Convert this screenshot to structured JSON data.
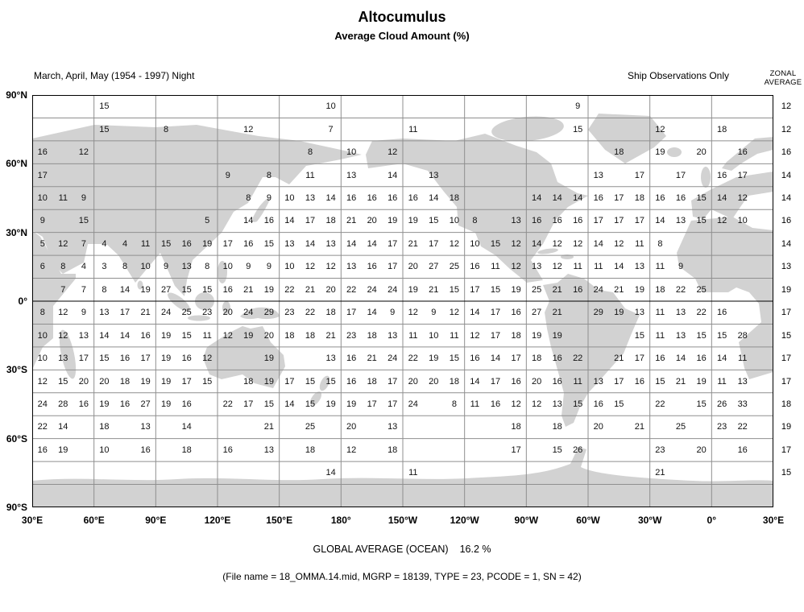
{
  "header": {
    "title": "Altocumulus",
    "subtitle": "Average Cloud Amount (%)",
    "period": "March, April, May (1954 - 1997) Night",
    "source": "Ship Observations Only",
    "zonal_label_line1": "ZONAL",
    "zonal_label_line2": "AVERAGE"
  },
  "footer": {
    "global_average_label": "GLOBAL AVERAGE (OCEAN)",
    "global_average_value": "16.2 %",
    "file_info": "(File name = 18_OMMA.14.mid, MGRP = 18139, TYPE = 23, PCODE = 1, SN = 42)"
  },
  "chart_data": {
    "type": "heatmap",
    "title": "Altocumulus",
    "subtitle": "Average Cloud Amount (%)",
    "season": "March, April, May (1954 - 1997) Night",
    "source": "Ship Observations Only",
    "global_average_ocean_pct": 16.2,
    "lat_labels": [
      "90°N",
      "60°N",
      "30°N",
      "0°",
      "30°S",
      "60°S",
      "90°S"
    ],
    "lon_labels": [
      "30°E",
      "60°E",
      "90°E",
      "120°E",
      "150°E",
      "180°",
      "150°W",
      "120°W",
      "90°W",
      "60°W",
      "30°W",
      "0°",
      "30°E"
    ],
    "n_rows": 18,
    "n_cols": 36,
    "cell_size_degrees": 10,
    "colors": {
      "land": "#d2d2d2",
      "grid": "#8f8f8f",
      "border": "#000000"
    },
    "zonal_averages": [
      12,
      12,
      16,
      14,
      14,
      16,
      14,
      13,
      19,
      17,
      15,
      17,
      17,
      18,
      19,
      17,
      15
    ],
    "rows": [
      {
        "lat_band": "90N-80N",
        "cells": {
          "3": 15,
          "14": 10,
          "26": 9
        }
      },
      {
        "lat_band": "80N-70N",
        "cells": {
          "3": 15,
          "6": 8,
          "10": 12,
          "14": 7,
          "18": 11,
          "26": 15,
          "30": 12,
          "33": 18
        }
      },
      {
        "lat_band": "70N-60N",
        "cells": {
          "0": 16,
          "2": 12,
          "13": 8,
          "15": 10,
          "17": 12,
          "28": 18,
          "30": 19,
          "32": 20,
          "34": 16
        }
      },
      {
        "lat_band": "60N-50N",
        "cells": {
          "0": 17,
          "9": 9,
          "11": 8,
          "13": 11,
          "15": 13,
          "17": 14,
          "19": 13,
          "27": 13,
          "29": 17,
          "31": 17,
          "33": 16,
          "34": 17
        }
      },
      {
        "lat_band": "50N-40N",
        "cells": {
          "0": 10,
          "1": 11,
          "2": 9,
          "10": 8,
          "11": 9,
          "12": 10,
          "13": 13,
          "14": 14,
          "15": 16,
          "16": 16,
          "17": 16,
          "18": 16,
          "19": 14,
          "20": 18,
          "24": 14,
          "25": 14,
          "26": 14,
          "27": 16,
          "28": 17,
          "29": 18,
          "30": 16,
          "31": 16,
          "32": 15,
          "33": 14,
          "34": 12
        }
      },
      {
        "lat_band": "40N-30N",
        "cells": {
          "0": 9,
          "2": 15,
          "8": 5,
          "10": 14,
          "11": 16,
          "12": 14,
          "13": 17,
          "14": 18,
          "15": 21,
          "16": 20,
          "17": 19,
          "18": 19,
          "19": 15,
          "20": 10,
          "21": 8,
          "23": 13,
          "24": 16,
          "25": 16,
          "26": 16,
          "27": 17,
          "28": 17,
          "29": 17,
          "30": 14,
          "31": 13,
          "32": 15,
          "33": 12,
          "34": 10
        }
      },
      {
        "lat_band": "30N-20N",
        "cells": {
          "0": 5,
          "1": 12,
          "2": 7,
          "3": 4,
          "4": 4,
          "5": 11,
          "6": 15,
          "7": 16,
          "8": 19,
          "9": 17,
          "10": 16,
          "11": 15,
          "12": 13,
          "13": 14,
          "14": 13,
          "15": 14,
          "16": 14,
          "17": 17,
          "18": 21,
          "19": 17,
          "20": 12,
          "21": 10,
          "22": 15,
          "23": 12,
          "24": 14,
          "25": 12,
          "26": 12,
          "27": 14,
          "28": 12,
          "29": 11,
          "30": 8
        }
      },
      {
        "lat_band": "20N-10N",
        "cells": {
          "0": 6,
          "1": 8,
          "2": 4,
          "3": 3,
          "4": 8,
          "5": 10,
          "6": 9,
          "7": 13,
          "8": 8,
          "9": 10,
          "10": 9,
          "11": 9,
          "12": 10,
          "13": 12,
          "14": 12,
          "15": 13,
          "16": 16,
          "17": 17,
          "18": 20,
          "19": 27,
          "20": 25,
          "21": 16,
          "22": 11,
          "23": 12,
          "24": 13,
          "25": 12,
          "26": 11,
          "27": 11,
          "28": 14,
          "29": 13,
          "30": 11,
          "31": 9
        }
      },
      {
        "lat_band": "10N-0",
        "cells": {
          "1": 7,
          "2": 7,
          "3": 8,
          "4": 14,
          "5": 19,
          "6": 27,
          "7": 15,
          "8": 15,
          "9": 16,
          "10": 21,
          "11": 19,
          "12": 22,
          "13": 21,
          "14": 20,
          "15": 22,
          "16": 24,
          "17": 24,
          "18": 19,
          "19": 21,
          "20": 15,
          "21": 17,
          "22": 15,
          "23": 19,
          "24": 25,
          "25": 21,
          "26": 16,
          "27": 24,
          "28": 21,
          "29": 19,
          "30": 18,
          "31": 22,
          "32": 25
        }
      },
      {
        "lat_band": "0-10S",
        "cells": {
          "0": 8,
          "1": 12,
          "2": 9,
          "3": 13,
          "4": 17,
          "5": 21,
          "6": 24,
          "7": 25,
          "8": 23,
          "9": 20,
          "10": 24,
          "11": 29,
          "12": 23,
          "13": 22,
          "14": 18,
          "15": 17,
          "16": 14,
          "17": 9,
          "18": 12,
          "19": 9,
          "20": 12,
          "21": 14,
          "22": 17,
          "23": 16,
          "24": 27,
          "25": 21,
          "27": 29,
          "28": 19,
          "29": 13,
          "30": 11,
          "31": 13,
          "32": 22,
          "33": 16
        }
      },
      {
        "lat_band": "10S-20S",
        "cells": {
          "0": 10,
          "1": 12,
          "2": 13,
          "3": 14,
          "4": 14,
          "5": 16,
          "6": 19,
          "7": 15,
          "8": 11,
          "9": 12,
          "10": 19,
          "11": 20,
          "12": 18,
          "13": 18,
          "14": 21,
          "15": 23,
          "16": 18,
          "17": 13,
          "18": 11,
          "19": 10,
          "20": 11,
          "21": 12,
          "22": 17,
          "23": 18,
          "24": 19,
          "25": 19,
          "29": 15,
          "30": 11,
          "31": 13,
          "32": 15,
          "33": 15,
          "34": 28
        }
      },
      {
        "lat_band": "20S-30S",
        "cells": {
          "0": 10,
          "1": 13,
          "2": 17,
          "3": 15,
          "4": 16,
          "5": 17,
          "6": 19,
          "7": 16,
          "8": 12,
          "11": 19,
          "14": 13,
          "15": 16,
          "16": 21,
          "17": 24,
          "18": 22,
          "19": 19,
          "20": 15,
          "21": 16,
          "22": 14,
          "23": 17,
          "24": 18,
          "25": 16,
          "26": 22,
          "28": 21,
          "29": 17,
          "30": 16,
          "31": 14,
          "32": 16,
          "33": 14,
          "34": 11
        }
      },
      {
        "lat_band": "30S-40S",
        "cells": {
          "0": 12,
          "1": 15,
          "2": 20,
          "3": 20,
          "4": 18,
          "5": 19,
          "6": 19,
          "7": 17,
          "8": 15,
          "10": 18,
          "11": 19,
          "12": 17,
          "13": 15,
          "14": 15,
          "15": 16,
          "16": 18,
          "17": 17,
          "18": 20,
          "19": 20,
          "20": 18,
          "21": 14,
          "22": 17,
          "23": 16,
          "24": 20,
          "25": 16,
          "26": 11,
          "27": 13,
          "28": 17,
          "29": 16,
          "30": 15,
          "31": 21,
          "32": 19,
          "33": 11,
          "34": 13
        }
      },
      {
        "lat_band": "40S-50S",
        "cells": {
          "0": 24,
          "1": 28,
          "2": 16,
          "3": 19,
          "4": 16,
          "5": 27,
          "6": 19,
          "7": 16,
          "9": 22,
          "10": 17,
          "11": 15,
          "12": 14,
          "13": 15,
          "14": 19,
          "15": 19,
          "16": 17,
          "17": 17,
          "18": 24,
          "20": 8,
          "21": 11,
          "22": 16,
          "23": 12,
          "24": 12,
          "25": 13,
          "26": 15,
          "27": 16,
          "28": 15,
          "30": 22,
          "32": 15,
          "33": 26,
          "34": 33
        }
      },
      {
        "lat_band": "50S-60S",
        "cells": {
          "0": 22,
          "1": 14,
          "3": 18,
          "5": 13,
          "7": 14,
          "11": 21,
          "13": 25,
          "15": 20,
          "17": 13,
          "23": 18,
          "25": 18,
          "27": 20,
          "29": 21,
          "31": 25,
          "33": 23,
          "34": 22
        }
      },
      {
        "lat_band": "60S-70S",
        "cells": {
          "0": 16,
          "1": 19,
          "3": 10,
          "5": 16,
          "7": 18,
          "9": 16,
          "11": 13,
          "13": 18,
          "15": 12,
          "17": 18,
          "23": 17,
          "25": 15,
          "26": 26,
          "30": 23,
          "32": 20,
          "34": 16
        }
      },
      {
        "lat_band": "70S-80S",
        "cells": {
          "14": 14,
          "18": 11,
          "30": 21
        }
      },
      {
        "lat_band": "80S-90S",
        "cells": {}
      }
    ]
  }
}
